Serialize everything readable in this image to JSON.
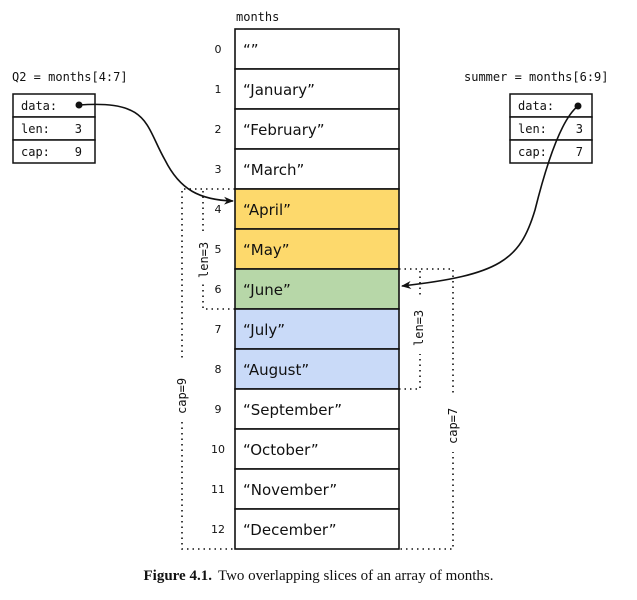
{
  "array": {
    "label": "months",
    "rows": [
      {
        "index": "0",
        "value": "“”",
        "color": "#ffffff"
      },
      {
        "index": "1",
        "value": "“January”",
        "color": "#ffffff"
      },
      {
        "index": "2",
        "value": "“February”",
        "color": "#ffffff"
      },
      {
        "index": "3",
        "value": "“March”",
        "color": "#ffffff"
      },
      {
        "index": "4",
        "value": "“April”",
        "color": "#fdd96c"
      },
      {
        "index": "5",
        "value": "“May”",
        "color": "#fdd96c"
      },
      {
        "index": "6",
        "value": "“June”",
        "color": "#b7d7a8"
      },
      {
        "index": "7",
        "value": "“July”",
        "color": "#c9daf8"
      },
      {
        "index": "8",
        "value": "“August”",
        "color": "#c9daf8"
      },
      {
        "index": "9",
        "value": "“September”",
        "color": "#ffffff"
      },
      {
        "index": "10",
        "value": "“October”",
        "color": "#ffffff"
      },
      {
        "index": "11",
        "value": "“November”",
        "color": "#ffffff"
      },
      {
        "index": "12",
        "value": "“December”",
        "color": "#ffffff"
      }
    ]
  },
  "q2": {
    "label": "Q2 = months[4:7]",
    "data_label": "data:",
    "len_label": "len:",
    "len_value": "3",
    "cap_label": "cap:",
    "cap_value": "9",
    "len_bracket": "len=3",
    "cap_bracket": "cap=9"
  },
  "summer": {
    "label": "summer = months[6:9]",
    "data_label": "data:",
    "len_label": "len:",
    "len_value": "3",
    "cap_label": "cap:",
    "cap_value": "7",
    "len_bracket": "len=3",
    "cap_bracket": "cap=7"
  },
  "caption": {
    "figure": "Figure 4.1.",
    "text": "Two overlapping slices of an array of months."
  }
}
